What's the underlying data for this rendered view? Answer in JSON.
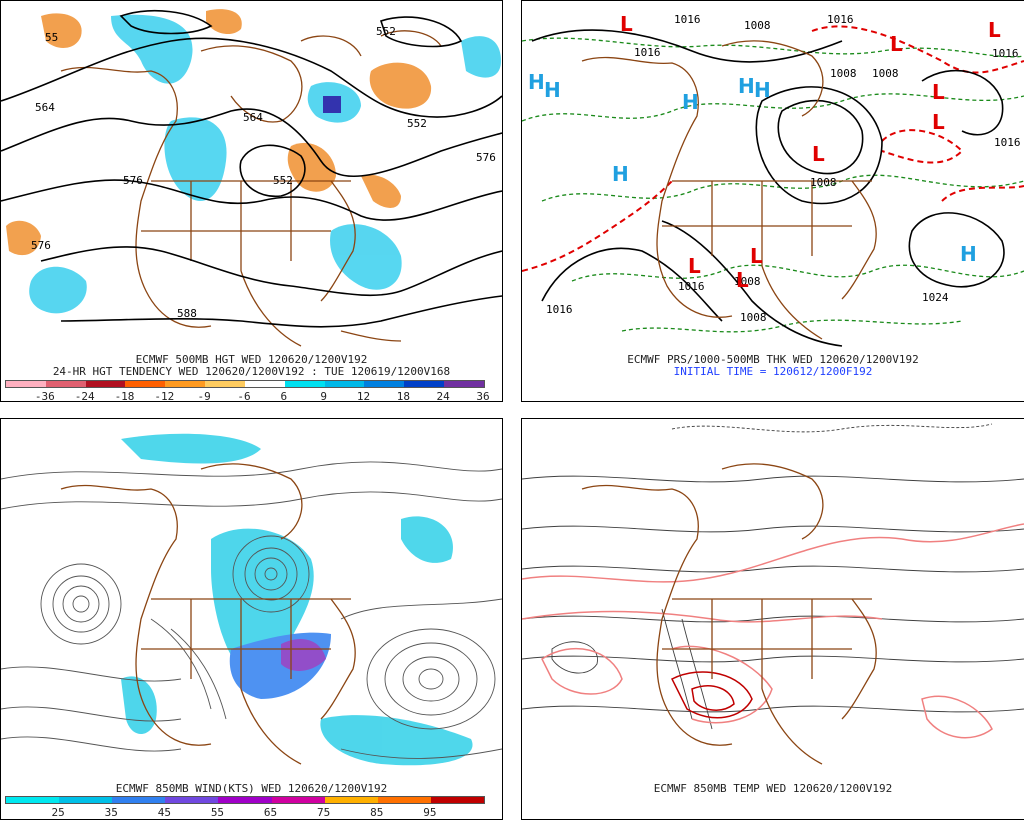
{
  "panels": {
    "p1": {
      "line1": "ECMWF 500MB HGT WED 120620/1200V192",
      "line2": "24-HR HGT TENDENCY WED 120620/1200V192 : TUE 120619/1200V168",
      "contour_labels": [
        "552",
        "564",
        "564",
        "576",
        "576",
        "576",
        "552",
        "588",
        "588",
        "552",
        "55"
      ],
      "colorbar": {
        "colors": [
          "#ffb0c0",
          "#e06070",
          "#b01020",
          "#ff6000",
          "#ff9a20",
          "#ffcc60",
          "#ffffff",
          "#00e0f0",
          "#00b8e8",
          "#0080e0",
          "#0040c8",
          "#7030a0"
        ],
        "labels": [
          "-36",
          "-24",
          "-18",
          "-12",
          "-9",
          "-6",
          "6",
          "9",
          "12",
          "18",
          "24",
          "36"
        ]
      }
    },
    "p2": {
      "line1": "ECMWF PRS/1000-500MB THK WED 120620/1200V192",
      "line2": "INITIAL TIME = 120612/1200F192",
      "pressure_labels": [
        "1016",
        "1008",
        "1016",
        "1016",
        "1008",
        "1008",
        "1016",
        "1024",
        "1016",
        "1008",
        "1016",
        "1008",
        "1016",
        "1008"
      ],
      "highs": [
        "H",
        "H",
        "H",
        "H",
        "H",
        "H",
        "H"
      ],
      "lows": [
        "L",
        "L",
        "L",
        "L",
        "L",
        "L",
        "L",
        "L",
        "L"
      ]
    },
    "p3": {
      "line1": "ECMWF 850MB WIND(KTS) WED 120620/1200V192",
      "colorbar": {
        "colors": [
          "#00e8f0",
          "#00c0e8",
          "#3080f0",
          "#7048e0",
          "#a000c8",
          "#d000a0",
          "#ffb000",
          "#ff7000",
          "#c00000"
        ],
        "labels": [
          "25",
          "35",
          "45",
          "55",
          "65",
          "75",
          "85",
          "95"
        ]
      }
    },
    "p4": {
      "line1": "ECMWF 850MB TEMP WED 120620/1200V192"
    }
  },
  "colors": {
    "coast": "#8b4513",
    "contour": "#000000",
    "thickness_dash": "#1a8a1a",
    "thickness_red": "#e00000",
    "high": "#20a0e0",
    "low": "#e00000",
    "tendency_pos": "#30c8e8",
    "tendency_neg": "#f09030",
    "wind_fill": "#30d0e8",
    "wind_strong": "#7030c0",
    "temp_line": "#404040",
    "temp_pink": "#f08080"
  }
}
